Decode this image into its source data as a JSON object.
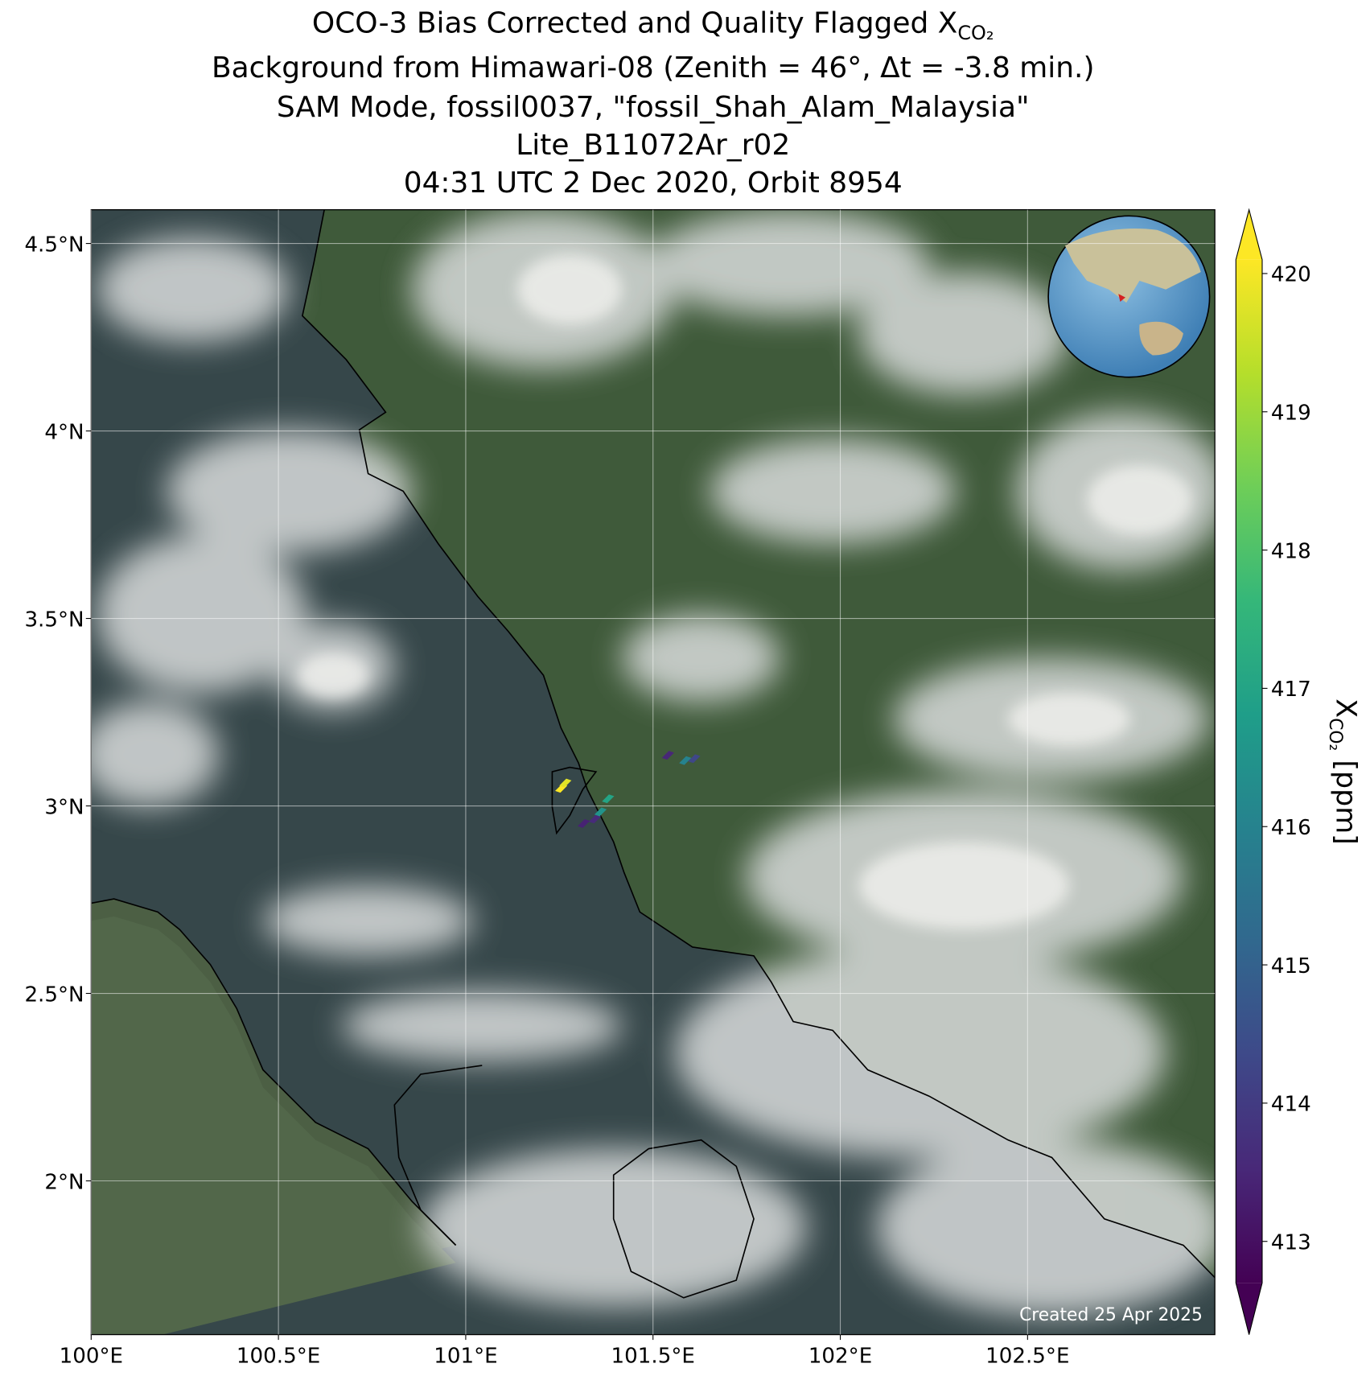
{
  "chart_data": {
    "type": "scatter",
    "title": [
      "OCO-3 Bias Corrected and Quality Flagged X",
      "Background from Himawari-08 (Zenith = 46°, Δt = -3.8 min.)",
      "SAM Mode, fossil0037, \"fossil_Shah_Alam_Malaysia\"",
      "Lite_B11072Ar_r02",
      "04:31 UTC 2 Dec 2020, Orbit 8954"
    ],
    "title_subscript": "CO₂",
    "xlim": [
      100,
      103
    ],
    "xticks": [
      {
        "value": 100,
        "label": "100°E"
      },
      {
        "value": 100.5,
        "label": "100.5°E"
      },
      {
        "value": 101,
        "label": "101°E"
      },
      {
        "value": 101.5,
        "label": "101.5°E"
      },
      {
        "value": 102,
        "label": "102°E"
      },
      {
        "value": 102.5,
        "label": "102.5°E"
      }
    ],
    "ylim": [
      1.59,
      4.59
    ],
    "yticks": [
      {
        "value": 2,
        "label": "2°N"
      },
      {
        "value": 2.5,
        "label": "2.5°N"
      },
      {
        "value": 3,
        "label": "3°N"
      },
      {
        "value": 3.5,
        "label": "3.5°N"
      },
      {
        "value": 4,
        "label": "4°N"
      },
      {
        "value": 4.5,
        "label": "4.5°N"
      }
    ],
    "grid": true,
    "lon": [
      101.255,
      101.266,
      101.315,
      101.345,
      101.36,
      101.38,
      101.54,
      101.586,
      101.61
    ],
    "lat": [
      3.047,
      3.061,
      2.953,
      2.965,
      2.984,
      3.019,
      3.135,
      3.121,
      3.126
    ],
    "values": [
      420.1,
      419.8,
      413.4,
      413.6,
      416.5,
      417.0,
      413.5,
      416.0,
      414.3
    ],
    "colormap": [
      "#440154",
      "#482878",
      "#3e4989",
      "#31688e",
      "#26828e",
      "#1f9e89",
      "#35b779",
      "#6ece58",
      "#b5de2b",
      "#fde725"
    ],
    "clim": [
      412.7,
      420.1
    ],
    "cticks": [
      413,
      414,
      415,
      416,
      417,
      418,
      419,
      420
    ],
    "colorbar_label": {
      "symbol": "X",
      "subscript": "CO₂",
      "units": " [ppm]"
    },
    "credit": "Created 25 Apr 2025"
  }
}
